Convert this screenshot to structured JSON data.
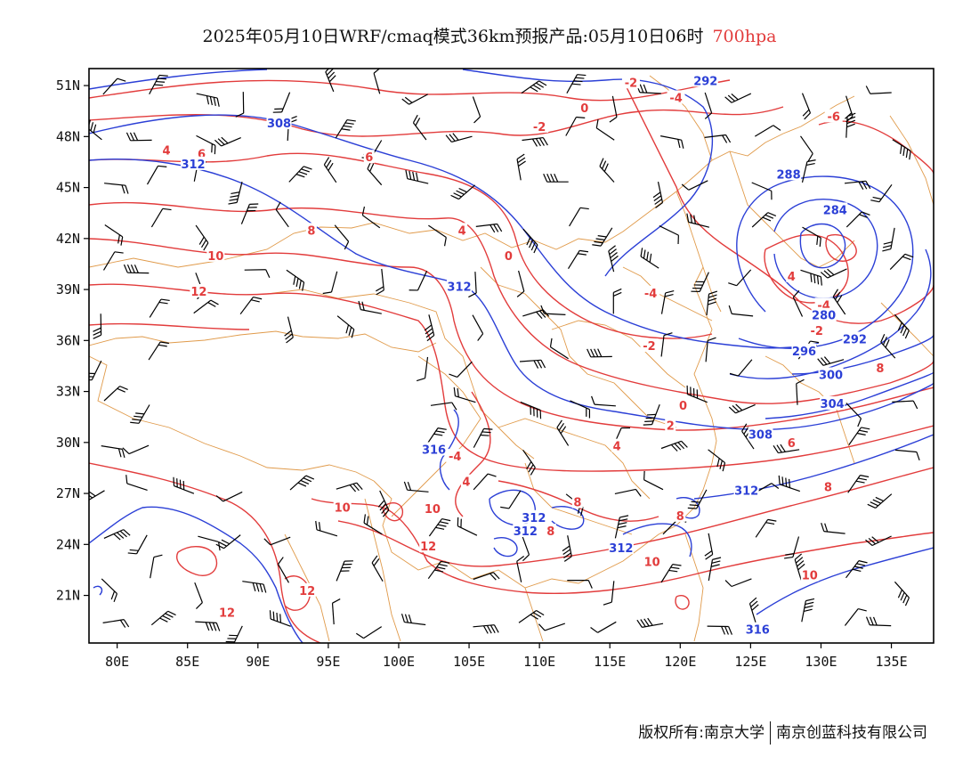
{
  "title": {
    "main": "2025年05月10日WRF/cmaq模式36km预报产品:05月10日06时",
    "level": "700hpa"
  },
  "colors": {
    "temperature": "#e23c3c",
    "height": "#2b3fd6",
    "boundary": "#e09a4a",
    "wind": "#000000",
    "level_text": "#e23c3c"
  },
  "axes": {
    "lon_ticks": [
      "80E",
      "85E",
      "90E",
      "95E",
      "100E",
      "105E",
      "110E",
      "115E",
      "120E",
      "125E",
      "130E",
      "135E"
    ],
    "lat_ticks": [
      "21N",
      "24N",
      "27N",
      "30N",
      "33N",
      "36N",
      "39N",
      "42N",
      "45N",
      "48N",
      "51N"
    ],
    "lon_range": [
      78,
      138
    ],
    "lat_range": [
      18.2,
      52.0
    ]
  },
  "temperature_labels": [
    {
      "text": "-2",
      "lon": 116.5,
      "lat": 51.2
    },
    {
      "text": "-4",
      "lon": 119.7,
      "lat": 50.3
    },
    {
      "text": "0",
      "lon": 113.2,
      "lat": 49.7
    },
    {
      "text": "-2",
      "lon": 110.0,
      "lat": 48.6
    },
    {
      "text": "-6",
      "lon": 130.9,
      "lat": 49.2
    },
    {
      "text": "6",
      "lon": 86.0,
      "lat": 47.0
    },
    {
      "text": "4",
      "lon": 83.5,
      "lat": 47.2
    },
    {
      "text": "6",
      "lon": 97.9,
      "lat": 46.8
    },
    {
      "text": "8",
      "lon": 93.8,
      "lat": 42.5
    },
    {
      "text": "10",
      "lon": 87.0,
      "lat": 41.0
    },
    {
      "text": "12",
      "lon": 85.8,
      "lat": 38.9
    },
    {
      "text": "4",
      "lon": 104.5,
      "lat": 42.5
    },
    {
      "text": "0",
      "lon": 107.8,
      "lat": 41.0
    },
    {
      "text": "-4",
      "lon": 117.9,
      "lat": 38.8
    },
    {
      "text": "-4",
      "lon": 130.2,
      "lat": 38.1
    },
    {
      "text": "-2",
      "lon": 129.7,
      "lat": 36.6
    },
    {
      "text": "4",
      "lon": 127.9,
      "lat": 39.8
    },
    {
      "text": "-2",
      "lon": 117.8,
      "lat": 35.7
    },
    {
      "text": "0",
      "lon": 120.2,
      "lat": 32.2
    },
    {
      "text": "2",
      "lon": 119.3,
      "lat": 31.0
    },
    {
      "text": "4",
      "lon": 115.5,
      "lat": 29.8
    },
    {
      "text": "6",
      "lon": 127.9,
      "lat": 30.0
    },
    {
      "text": "8",
      "lon": 134.2,
      "lat": 34.4
    },
    {
      "text": "8",
      "lon": 130.5,
      "lat": 27.4
    },
    {
      "text": "-4",
      "lon": 104.0,
      "lat": 29.2
    },
    {
      "text": "4",
      "lon": 104.8,
      "lat": 27.7
    },
    {
      "text": "10",
      "lon": 96.0,
      "lat": 26.2
    },
    {
      "text": "10",
      "lon": 102.4,
      "lat": 26.1
    },
    {
      "text": "12",
      "lon": 102.1,
      "lat": 23.9
    },
    {
      "text": "12",
      "lon": 93.5,
      "lat": 21.3
    },
    {
      "text": "12",
      "lon": 87.8,
      "lat": 20.0
    },
    {
      "text": "8",
      "lon": 112.7,
      "lat": 26.5
    },
    {
      "text": "8",
      "lon": 110.8,
      "lat": 24.8
    },
    {
      "text": "8",
      "lon": 120.0,
      "lat": 25.7
    },
    {
      "text": "10",
      "lon": 118.0,
      "lat": 23.0
    },
    {
      "text": "10",
      "lon": 129.2,
      "lat": 22.2
    }
  ],
  "height_labels": [
    {
      "text": "292",
      "lon": 121.8,
      "lat": 51.3
    },
    {
      "text": "308",
      "lon": 91.5,
      "lat": 48.8
    },
    {
      "text": "312",
      "lon": 85.4,
      "lat": 46.4
    },
    {
      "text": "288",
      "lon": 127.7,
      "lat": 45.8
    },
    {
      "text": "284",
      "lon": 131.0,
      "lat": 43.7
    },
    {
      "text": "280",
      "lon": 130.2,
      "lat": 37.5
    },
    {
      "text": "292",
      "lon": 132.4,
      "lat": 36.1
    },
    {
      "text": "296",
      "lon": 128.8,
      "lat": 35.4
    },
    {
      "text": "300",
      "lon": 130.7,
      "lat": 34.0
    },
    {
      "text": "304",
      "lon": 130.8,
      "lat": 32.3
    },
    {
      "text": "308",
      "lon": 125.7,
      "lat": 30.5
    },
    {
      "text": "312",
      "lon": 104.3,
      "lat": 39.2
    },
    {
      "text": "316",
      "lon": 102.5,
      "lat": 29.6
    },
    {
      "text": "312",
      "lon": 109.6,
      "lat": 25.6
    },
    {
      "text": "312",
      "lon": 109.0,
      "lat": 24.8
    },
    {
      "text": "312",
      "lon": 115.8,
      "lat": 23.8
    },
    {
      "text": "312",
      "lon": 124.7,
      "lat": 27.2
    },
    {
      "text": "316",
      "lon": 125.5,
      "lat": 19.0
    }
  ],
  "footer": {
    "copyright": "版权所有:南京大学",
    "company": "南京创蓝科技有限公司"
  }
}
